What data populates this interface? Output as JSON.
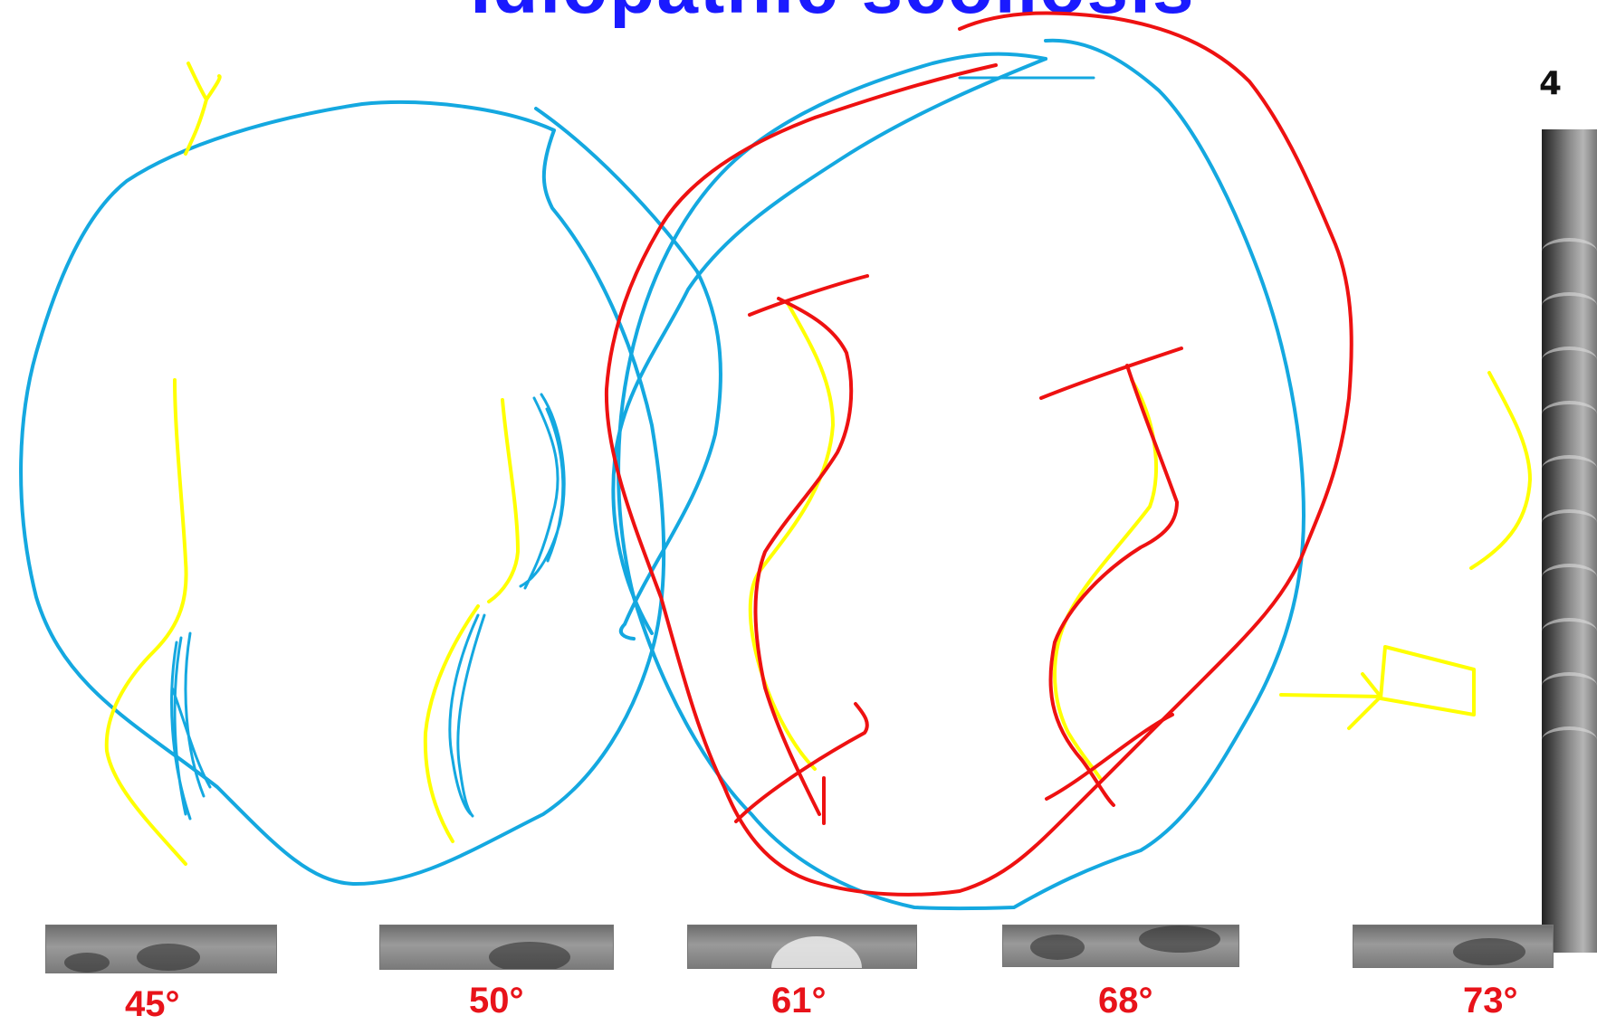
{
  "slide": {
    "title": "Idiopathic scoliosis",
    "corner_number": "4"
  },
  "angles": [
    "45°",
    "50°",
    "61°",
    "68°",
    "73°"
  ],
  "colors": {
    "title": "#1a1aff",
    "angle_labels": "#e8131a",
    "ink_blue": "#14a8e0",
    "ink_yellow": "#ffff00",
    "ink_red": "#ee1111"
  },
  "icons": [
    "xray-thumbnail",
    "side-xray-image"
  ]
}
